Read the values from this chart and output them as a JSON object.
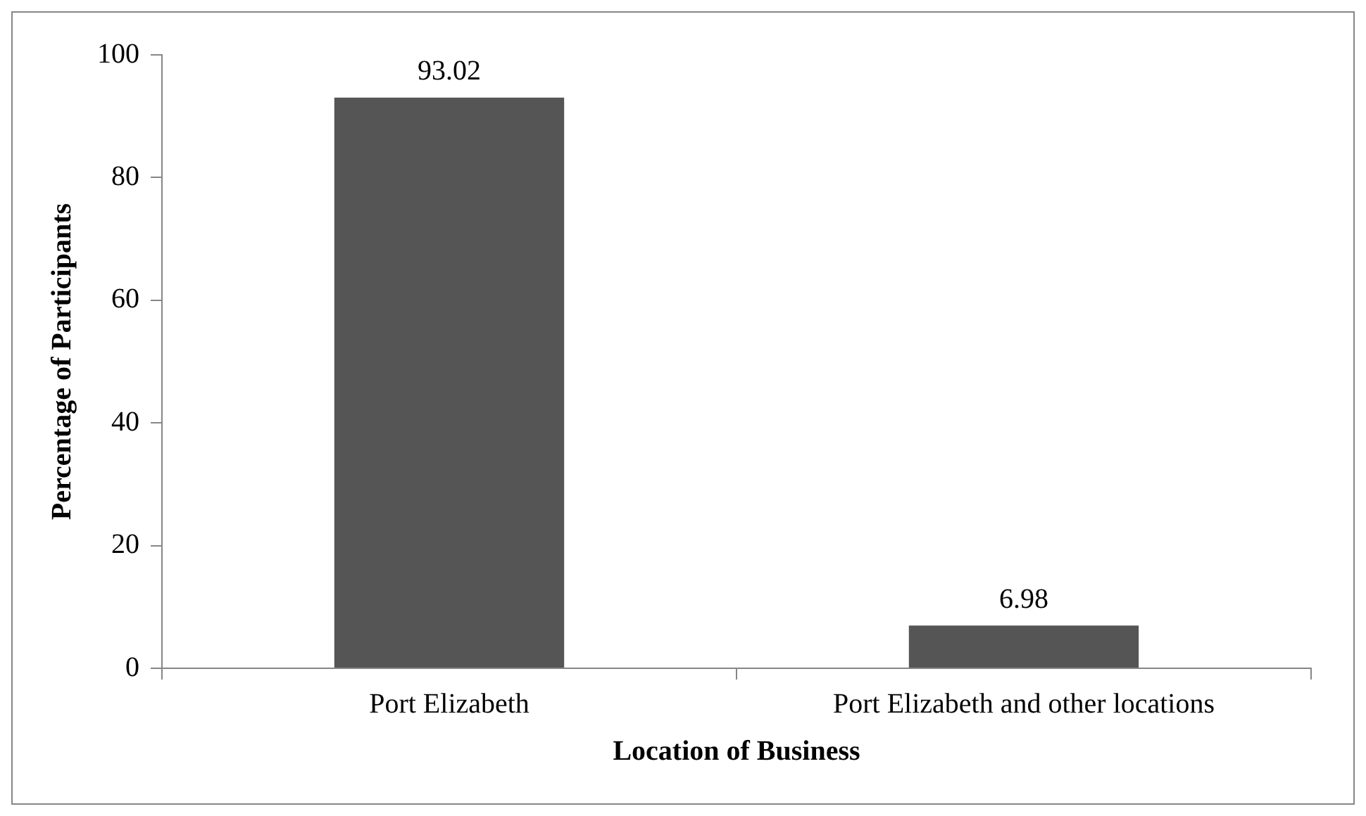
{
  "chart_data": {
    "type": "bar",
    "xlabel": "Location of Business",
    "ylabel": "Percentage of Participants",
    "categories": [
      "Port Elizabeth",
      "Port Elizabeth and other locations"
    ],
    "values": [
      93.02,
      6.98
    ],
    "color": "#555555",
    "ylim": [
      0,
      100
    ],
    "yticks": [
      0,
      20,
      40,
      60,
      80,
      100
    ],
    "grid": false,
    "legend": false,
    "data_labels": true
  }
}
